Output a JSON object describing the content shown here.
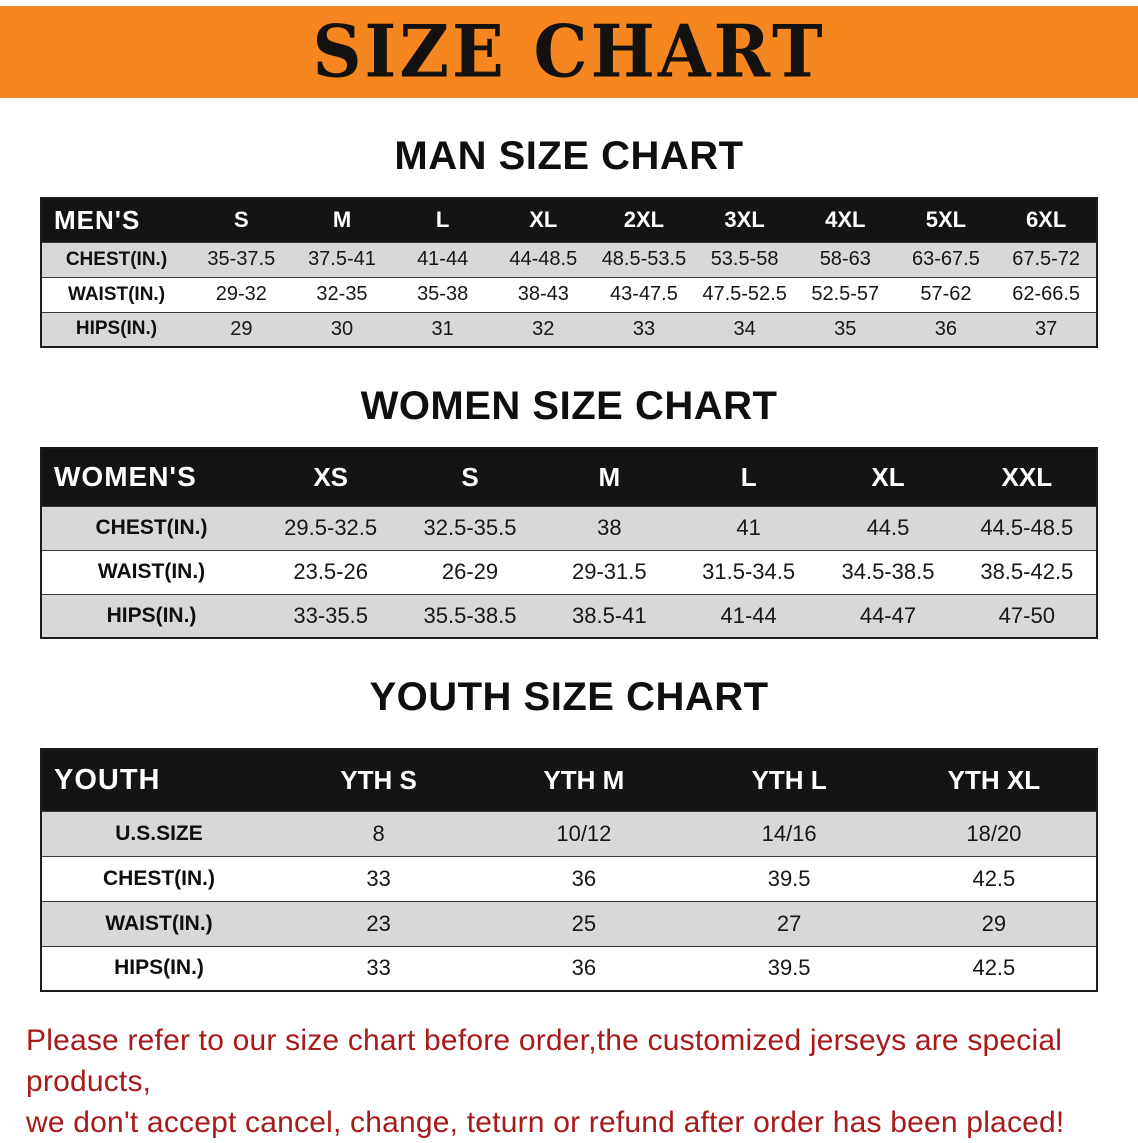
{
  "banner": {
    "title": "SIZE CHART"
  },
  "tables": [
    {
      "heading": "MAN SIZE CHART",
      "header": [
        "MEN'S",
        "S",
        "M",
        "L",
        "XL",
        "2XL",
        "3XL",
        "4XL",
        "5XL",
        "6XL"
      ],
      "rows": [
        [
          "CHEST(IN.)",
          "35-37.5",
          "37.5-41",
          "41-44",
          "44-48.5",
          "48.5-53.5",
          "53.5-58",
          "58-63",
          "63-67.5",
          "67.5-72"
        ],
        [
          "WAIST(IN.)",
          "29-32",
          "32-35",
          "35-38",
          "38-43",
          "43-47.5",
          "47.5-52.5",
          "52.5-57",
          "57-62",
          "62-66.5"
        ],
        [
          "HIPS(IN.)",
          "29",
          "30",
          "31",
          "32",
          "33",
          "34",
          "35",
          "36",
          "37"
        ]
      ]
    },
    {
      "heading": "WOMEN SIZE CHART",
      "header": [
        "WOMEN'S",
        "XS",
        "S",
        "M",
        "L",
        "XL",
        "XXL"
      ],
      "rows": [
        [
          "CHEST(IN.)",
          "29.5-32.5",
          "32.5-35.5",
          "38",
          "41",
          "44.5",
          "44.5-48.5"
        ],
        [
          "WAIST(IN.)",
          "23.5-26",
          "26-29",
          "29-31.5",
          "31.5-34.5",
          "34.5-38.5",
          "38.5-42.5"
        ],
        [
          "HIPS(IN.)",
          "33-35.5",
          "35.5-38.5",
          "38.5-41",
          "41-44",
          "44-47",
          "47-50"
        ]
      ]
    },
    {
      "heading": "YOUTH SIZE CHART",
      "header": [
        "YOUTH",
        "YTH S",
        "YTH M",
        "YTH L",
        "YTH XL"
      ],
      "rows": [
        [
          "U.S.SIZE",
          "8",
          "10/12",
          "14/16",
          "18/20"
        ],
        [
          "CHEST(IN.)",
          "33",
          "36",
          "39.5",
          "42.5"
        ],
        [
          "WAIST(IN.)",
          "23",
          "25",
          "27",
          "29"
        ],
        [
          "HIPS(IN.)",
          "33",
          "36",
          "39.5",
          "42.5"
        ]
      ]
    }
  ],
  "disclaimer": {
    "line1": "Please refer to our size chart before order,the customized jerseys are special products,",
    "line2": "we don't accept cancel, change, teturn or refund after order has been placed!"
  },
  "colors": {
    "banner_orange": "#F6861F",
    "header_black": "#141414",
    "stripe_gray": "#D8D8D8",
    "disclaimer_red": "#A61A1A"
  }
}
